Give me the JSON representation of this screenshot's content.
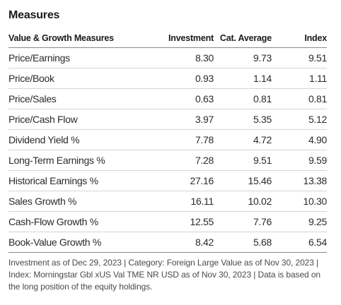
{
  "title": "Measures",
  "headers": {
    "label": "Value & Growth Measures",
    "investment": "Investment",
    "cat_average": "Cat. Average",
    "index": "Index"
  },
  "rows": [
    {
      "label": "Price/Earnings",
      "investment": "8.30",
      "cat_average": "9.73",
      "index": "9.51"
    },
    {
      "label": "Price/Book",
      "investment": "0.93",
      "cat_average": "1.14",
      "index": "1.11"
    },
    {
      "label": "Price/Sales",
      "investment": "0.63",
      "cat_average": "0.81",
      "index": "0.81"
    },
    {
      "label": "Price/Cash Flow",
      "investment": "3.97",
      "cat_average": "5.35",
      "index": "5.12"
    },
    {
      "label": "Dividend Yield %",
      "investment": "7.78",
      "cat_average": "4.72",
      "index": "4.90"
    },
    {
      "label": "Long-Term Earnings %",
      "investment": "7.28",
      "cat_average": "9.51",
      "index": "9.59"
    },
    {
      "label": "Historical Earnings %",
      "investment": "27.16",
      "cat_average": "15.46",
      "index": "13.38"
    },
    {
      "label": "Sales Growth %",
      "investment": "16.11",
      "cat_average": "10.02",
      "index": "10.30"
    },
    {
      "label": "Cash-Flow Growth %",
      "investment": "12.55",
      "cat_average": "7.76",
      "index": "9.25"
    },
    {
      "label": "Book-Value Growth %",
      "investment": "8.42",
      "cat_average": "5.68",
      "index": "6.54"
    }
  ],
  "footnote": "Investment as of Dec 29, 2023 | Category: Foreign Large Value as of Nov 30, 2023 | Index: Morningstar Gbl xUS Val TME NR USD as of Nov 30, 2023 | Data is based on the long position of the equity holdings."
}
